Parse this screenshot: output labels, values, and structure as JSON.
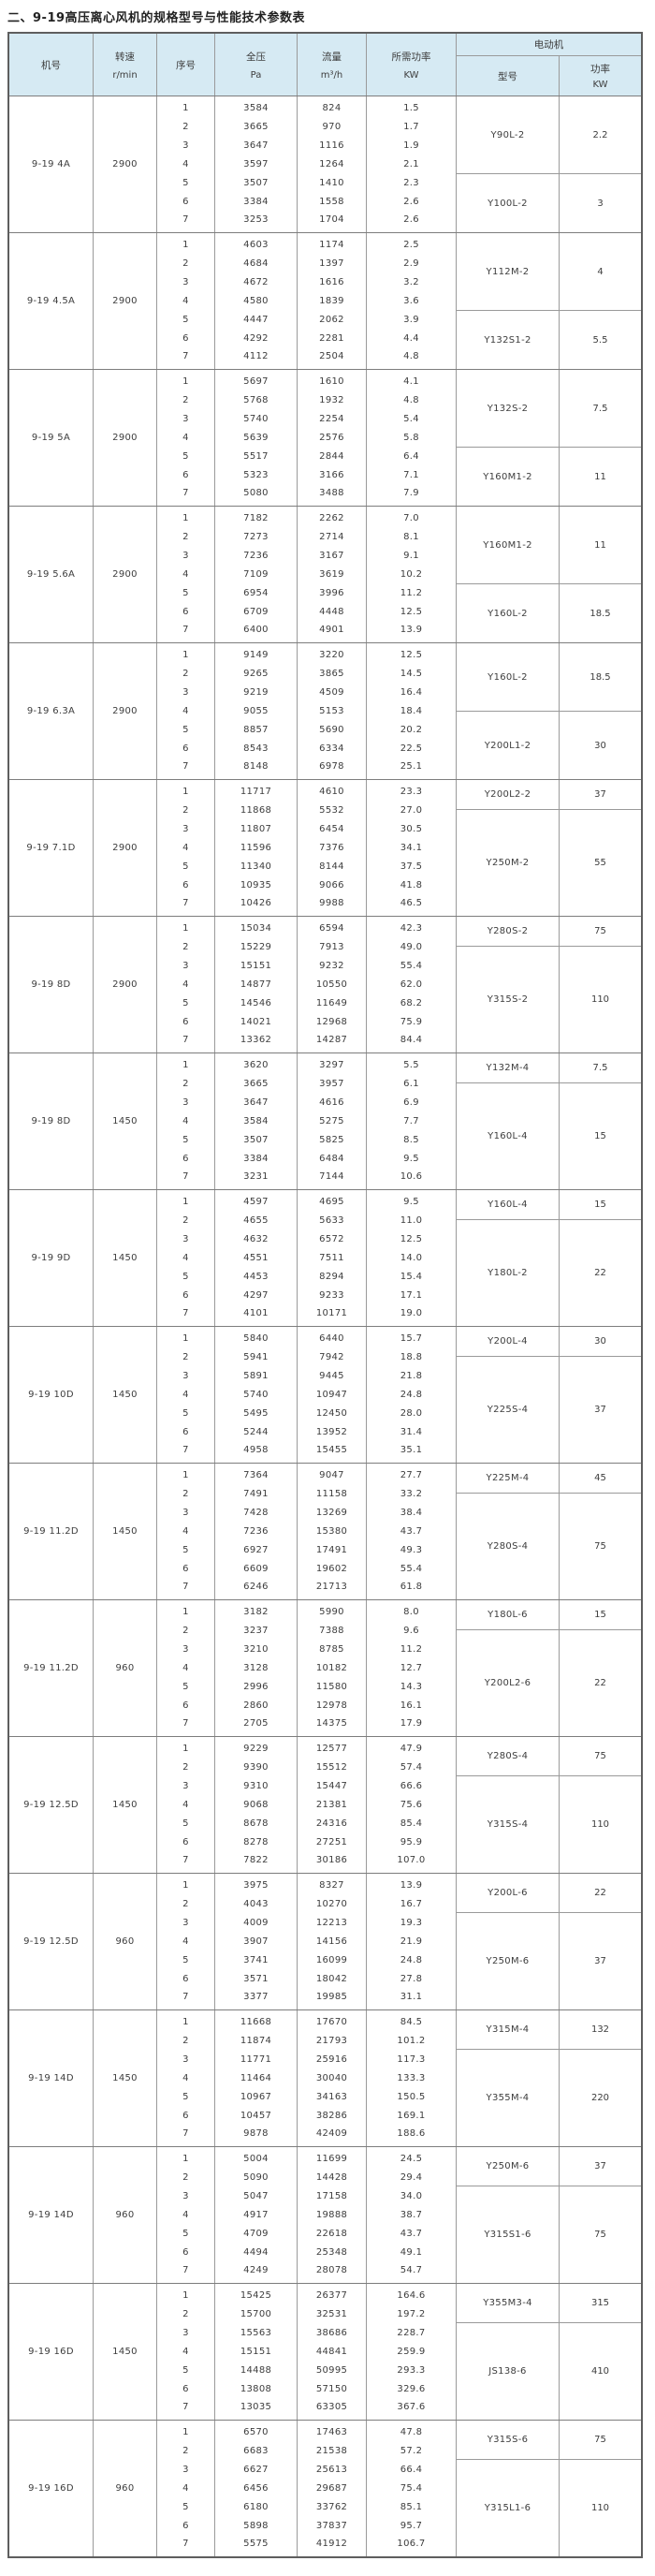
{
  "title": "二、9-19高压离心风机的规格型号与性能技术参数表",
  "colors": {
    "header_bg": "#d6eaf3",
    "border": "#9a9a9a",
    "outer_border": "#5e5e5e",
    "text": "#3d3d3d"
  },
  "table": {
    "headers": {
      "jihao": "机号",
      "zhuansu": "转速",
      "zhuansu_unit": "r/min",
      "xuhao": "序号",
      "quanya": "全压",
      "quanya_unit": "Pa",
      "liuliang": "流量",
      "liuliang_unit": "m³/h",
      "gonglv": "所需功率",
      "gonglv_unit": "KW",
      "motor": "电动机",
      "motor_model": "型号",
      "motor_power": "功率",
      "motor_power_unit": "KW"
    },
    "groups": [
      {
        "model": "9-19 4A",
        "speed": "2900",
        "rows": [
          [
            "1",
            "3584",
            "824",
            "1.5"
          ],
          [
            "2",
            "3665",
            "970",
            "1.7"
          ],
          [
            "3",
            "3647",
            "1116",
            "1.9"
          ],
          [
            "4",
            "3597",
            "1264",
            "2.1"
          ],
          [
            "5",
            "3507",
            "1410",
            "2.3"
          ],
          [
            "6",
            "3384",
            "1558",
            "2.6"
          ],
          [
            "7",
            "3253",
            "1704",
            "2.6"
          ]
        ],
        "motors": [
          {
            "model": "Y90L-2",
            "power": "2.2",
            "span": 4
          },
          {
            "model": "Y100L-2",
            "power": "3",
            "span": 3
          }
        ]
      },
      {
        "model": "9-19 4.5A",
        "speed": "2900",
        "rows": [
          [
            "1",
            "4603",
            "1174",
            "2.5"
          ],
          [
            "2",
            "4684",
            "1397",
            "2.9"
          ],
          [
            "3",
            "4672",
            "1616",
            "3.2"
          ],
          [
            "4",
            "4580",
            "1839",
            "3.6"
          ],
          [
            "5",
            "4447",
            "2062",
            "3.9"
          ],
          [
            "6",
            "4292",
            "2281",
            "4.4"
          ],
          [
            "7",
            "4112",
            "2504",
            "4.8"
          ]
        ],
        "motors": [
          {
            "model": "Y112M-2",
            "power": "4",
            "span": 4
          },
          {
            "model": "Y132S1-2",
            "power": "5.5",
            "span": 3
          }
        ]
      },
      {
        "model": "9-19 5A",
        "speed": "2900",
        "rows": [
          [
            "1",
            "5697",
            "1610",
            "4.1"
          ],
          [
            "2",
            "5768",
            "1932",
            "4.8"
          ],
          [
            "3",
            "5740",
            "2254",
            "5.4"
          ],
          [
            "4",
            "5639",
            "2576",
            "5.8"
          ],
          [
            "5",
            "5517",
            "2844",
            "6.4"
          ],
          [
            "6",
            "5323",
            "3166",
            "7.1"
          ],
          [
            "7",
            "5080",
            "3488",
            "7.9"
          ]
        ],
        "motors": [
          {
            "model": "Y132S-2",
            "power": "7.5",
            "span": 4
          },
          {
            "model": "Y160M1-2",
            "power": "11",
            "span": 3
          }
        ]
      },
      {
        "model": "9-19 5.6A",
        "speed": "2900",
        "rows": [
          [
            "1",
            "7182",
            "2262",
            "7.0"
          ],
          [
            "2",
            "7273",
            "2714",
            "8.1"
          ],
          [
            "3",
            "7236",
            "3167",
            "9.1"
          ],
          [
            "4",
            "7109",
            "3619",
            "10.2"
          ],
          [
            "5",
            "6954",
            "3996",
            "11.2"
          ],
          [
            "6",
            "6709",
            "4448",
            "12.5"
          ],
          [
            "7",
            "6400",
            "4901",
            "13.9"
          ]
        ],
        "motors": [
          {
            "model": "Y160M1-2",
            "power": "11",
            "span": 4
          },
          {
            "model": "Y160L-2",
            "power": "18.5",
            "span": 3
          }
        ]
      },
      {
        "model": "9-19 6.3A",
        "speed": "2900",
        "rows": [
          [
            "1",
            "9149",
            "3220",
            "12.5"
          ],
          [
            "2",
            "9265",
            "3865",
            "14.5"
          ],
          [
            "3",
            "9219",
            "4509",
            "16.4"
          ],
          [
            "4",
            "9055",
            "5153",
            "18.4"
          ],
          [
            "5",
            "8857",
            "5690",
            "20.2"
          ],
          [
            "6",
            "8543",
            "6334",
            "22.5"
          ],
          [
            "7",
            "8148",
            "6978",
            "25.1"
          ]
        ],
        "motors": [
          {
            "model": "Y160L-2",
            "power": "18.5",
            "span": 3.5
          },
          {
            "model": "Y200L1-2",
            "power": "30",
            "span": 3.5
          }
        ]
      },
      {
        "model": "9-19 7.1D",
        "speed": "2900",
        "rows": [
          [
            "1",
            "11717",
            "4610",
            "23.3"
          ],
          [
            "2",
            "11868",
            "5532",
            "27.0"
          ],
          [
            "3",
            "11807",
            "6454",
            "30.5"
          ],
          [
            "4",
            "11596",
            "7376",
            "34.1"
          ],
          [
            "5",
            "11340",
            "8144",
            "37.5"
          ],
          [
            "6",
            "10935",
            "9066",
            "41.8"
          ],
          [
            "7",
            "10426",
            "9988",
            "46.5"
          ]
        ],
        "motors": [
          {
            "model": "Y200L2-2",
            "power": "37",
            "span": 1.5
          },
          {
            "model": "Y250M-2",
            "power": "55",
            "span": 5.5
          }
        ]
      },
      {
        "model": "9-19 8D",
        "speed": "2900",
        "rows": [
          [
            "1",
            "15034",
            "6594",
            "42.3"
          ],
          [
            "2",
            "15229",
            "7913",
            "49.0"
          ],
          [
            "3",
            "15151",
            "9232",
            "55.4"
          ],
          [
            "4",
            "14877",
            "10550",
            "62.0"
          ],
          [
            "5",
            "14546",
            "11649",
            "68.2"
          ],
          [
            "6",
            "14021",
            "12968",
            "75.9"
          ],
          [
            "7",
            "13362",
            "14287",
            "84.4"
          ]
        ],
        "motors": [
          {
            "model": "Y280S-2",
            "power": "75",
            "span": 1.5
          },
          {
            "model": "Y315S-2",
            "power": "110",
            "span": 5.5
          }
        ]
      },
      {
        "model": "9-19 8D",
        "speed": "1450",
        "rows": [
          [
            "1",
            "3620",
            "3297",
            "5.5"
          ],
          [
            "2",
            "3665",
            "3957",
            "6.1"
          ],
          [
            "3",
            "3647",
            "4616",
            "6.9"
          ],
          [
            "4",
            "3584",
            "5275",
            "7.7"
          ],
          [
            "5",
            "3507",
            "5825",
            "8.5"
          ],
          [
            "6",
            "3384",
            "6484",
            "9.5"
          ],
          [
            "7",
            "3231",
            "7144",
            "10.6"
          ]
        ],
        "motors": [
          {
            "model": "Y132M-4",
            "power": "7.5",
            "span": 1.5
          },
          {
            "model": "Y160L-4",
            "power": "15",
            "span": 5.5
          }
        ]
      },
      {
        "model": "9-19 9D",
        "speed": "1450",
        "rows": [
          [
            "1",
            "4597",
            "4695",
            "9.5"
          ],
          [
            "2",
            "4655",
            "5633",
            "11.0"
          ],
          [
            "3",
            "4632",
            "6572",
            "12.5"
          ],
          [
            "4",
            "4551",
            "7511",
            "14.0"
          ],
          [
            "5",
            "4453",
            "8294",
            "15.4"
          ],
          [
            "6",
            "4297",
            "9233",
            "17.1"
          ],
          [
            "7",
            "4101",
            "10171",
            "19.0"
          ]
        ],
        "motors": [
          {
            "model": "Y160L-4",
            "power": "15",
            "span": 1.5
          },
          {
            "model": "Y180L-2",
            "power": "22",
            "span": 5.5
          }
        ]
      },
      {
        "model": "9-19 10D",
        "speed": "1450",
        "rows": [
          [
            "1",
            "5840",
            "6440",
            "15.7"
          ],
          [
            "2",
            "5941",
            "7942",
            "18.8"
          ],
          [
            "3",
            "5891",
            "9445",
            "21.8"
          ],
          [
            "4",
            "5740",
            "10947",
            "24.8"
          ],
          [
            "5",
            "5495",
            "12450",
            "28.0"
          ],
          [
            "6",
            "5244",
            "13952",
            "31.4"
          ],
          [
            "7",
            "4958",
            "15455",
            "35.1"
          ]
        ],
        "motors": [
          {
            "model": "Y200L-4",
            "power": "30",
            "span": 1.5
          },
          {
            "model": "Y225S-4",
            "power": "37",
            "span": 5.5
          }
        ]
      },
      {
        "model": "9-19 11.2D",
        "speed": "1450",
        "rows": [
          [
            "1",
            "7364",
            "9047",
            "27.7"
          ],
          [
            "2",
            "7491",
            "11158",
            "33.2"
          ],
          [
            "3",
            "7428",
            "13269",
            "38.4"
          ],
          [
            "4",
            "7236",
            "15380",
            "43.7"
          ],
          [
            "5",
            "6927",
            "17491",
            "49.3"
          ],
          [
            "6",
            "6609",
            "19602",
            "55.4"
          ],
          [
            "7",
            "6246",
            "21713",
            "61.8"
          ]
        ],
        "motors": [
          {
            "model": "Y225M-4",
            "power": "45",
            "span": 1.5
          },
          {
            "model": "Y280S-4",
            "power": "75",
            "span": 5.5
          }
        ]
      },
      {
        "model": "9-19 11.2D",
        "speed": "960",
        "rows": [
          [
            "1",
            "3182",
            "5990",
            "8.0"
          ],
          [
            "2",
            "3237",
            "7388",
            "9.6"
          ],
          [
            "3",
            "3210",
            "8785",
            "11.2"
          ],
          [
            "4",
            "3128",
            "10182",
            "12.7"
          ],
          [
            "5",
            "2996",
            "11580",
            "14.3"
          ],
          [
            "6",
            "2860",
            "12978",
            "16.1"
          ],
          [
            "7",
            "2705",
            "14375",
            "17.9"
          ]
        ],
        "motors": [
          {
            "model": "Y180L-6",
            "power": "15",
            "span": 1.5
          },
          {
            "model": "Y200L2-6",
            "power": "22",
            "span": 5.5
          }
        ]
      },
      {
        "model": "9-19 12.5D",
        "speed": "1450",
        "rows": [
          [
            "1",
            "9229",
            "12577",
            "47.9"
          ],
          [
            "2",
            "9390",
            "15512",
            "57.4"
          ],
          [
            "3",
            "9310",
            "15447",
            "66.6"
          ],
          [
            "4",
            "9068",
            "21381",
            "75.6"
          ],
          [
            "5",
            "8678",
            "24316",
            "85.4"
          ],
          [
            "6",
            "8278",
            "27251",
            "95.9"
          ],
          [
            "7",
            "7822",
            "30186",
            "107.0"
          ]
        ],
        "motors": [
          {
            "model": "Y280S-4",
            "power": "75",
            "span": 2
          },
          {
            "model": "Y315S-4",
            "power": "110",
            "span": 5
          }
        ]
      },
      {
        "model": "9-19 12.5D",
        "speed": "960",
        "rows": [
          [
            "1",
            "3975",
            "8327",
            "13.9"
          ],
          [
            "2",
            "4043",
            "10270",
            "16.7"
          ],
          [
            "3",
            "4009",
            "12213",
            "19.3"
          ],
          [
            "4",
            "3907",
            "14156",
            "21.9"
          ],
          [
            "5",
            "3741",
            "16099",
            "24.8"
          ],
          [
            "6",
            "3571",
            "18042",
            "27.8"
          ],
          [
            "7",
            "3377",
            "19985",
            "31.1"
          ]
        ],
        "motors": [
          {
            "model": "Y200L-6",
            "power": "22",
            "span": 2
          },
          {
            "model": "Y250M-6",
            "power": "37",
            "span": 5
          }
        ]
      },
      {
        "model": "9-19 14D",
        "speed": "1450",
        "rows": [
          [
            "1",
            "11668",
            "17670",
            "84.5"
          ],
          [
            "2",
            "11874",
            "21793",
            "101.2"
          ],
          [
            "3",
            "11771",
            "25916",
            "117.3"
          ],
          [
            "4",
            "11464",
            "30040",
            "133.3"
          ],
          [
            "5",
            "10967",
            "34163",
            "150.5"
          ],
          [
            "6",
            "10457",
            "38286",
            "169.1"
          ],
          [
            "7",
            "9878",
            "42409",
            "188.6"
          ]
        ],
        "motors": [
          {
            "model": "Y315M-4",
            "power": "132",
            "span": 2
          },
          {
            "model": "Y355M-4",
            "power": "220",
            "span": 5
          }
        ]
      },
      {
        "model": "9-19 14D",
        "speed": "960",
        "rows": [
          [
            "1",
            "5004",
            "11699",
            "24.5"
          ],
          [
            "2",
            "5090",
            "14428",
            "29.4"
          ],
          [
            "3",
            "5047",
            "17158",
            "34.0"
          ],
          [
            "4",
            "4917",
            "19888",
            "38.7"
          ],
          [
            "5",
            "4709",
            "22618",
            "43.7"
          ],
          [
            "6",
            "4494",
            "25348",
            "49.1"
          ],
          [
            "7",
            "4249",
            "28078",
            "54.7"
          ]
        ],
        "motors": [
          {
            "model": "Y250M-6",
            "power": "37",
            "span": 2
          },
          {
            "model": "Y315S1-6",
            "power": "75",
            "span": 5
          }
        ]
      },
      {
        "model": "9-19 16D",
        "speed": "1450",
        "rows": [
          [
            "1",
            "15425",
            "26377",
            "164.6"
          ],
          [
            "2",
            "15700",
            "32531",
            "197.2"
          ],
          [
            "3",
            "15563",
            "38686",
            "228.7"
          ],
          [
            "4",
            "15151",
            "44841",
            "259.9"
          ],
          [
            "5",
            "14488",
            "50995",
            "293.3"
          ],
          [
            "6",
            "13808",
            "57150",
            "329.6"
          ],
          [
            "7",
            "13035",
            "63305",
            "367.6"
          ]
        ],
        "motors": [
          {
            "model": "Y355M3-4",
            "power": "315",
            "span": 2
          },
          {
            "model": "JS138-6",
            "power": "410",
            "span": 5
          }
        ]
      },
      {
        "model": "9-19 16D",
        "speed": "960",
        "rows": [
          [
            "1",
            "6570",
            "17463",
            "47.8"
          ],
          [
            "2",
            "6683",
            "21538",
            "57.2"
          ],
          [
            "3",
            "6627",
            "25613",
            "66.4"
          ],
          [
            "4",
            "6456",
            "29687",
            "75.4"
          ],
          [
            "5",
            "6180",
            "33762",
            "85.1"
          ],
          [
            "6",
            "5898",
            "37837",
            "95.7"
          ],
          [
            "7",
            "5575",
            "41912",
            "106.7"
          ]
        ],
        "motors": [
          {
            "model": "Y315S-6",
            "power": "75",
            "span": 2
          },
          {
            "model": "Y315L1-6",
            "power": "110",
            "span": 5
          }
        ]
      }
    ]
  }
}
